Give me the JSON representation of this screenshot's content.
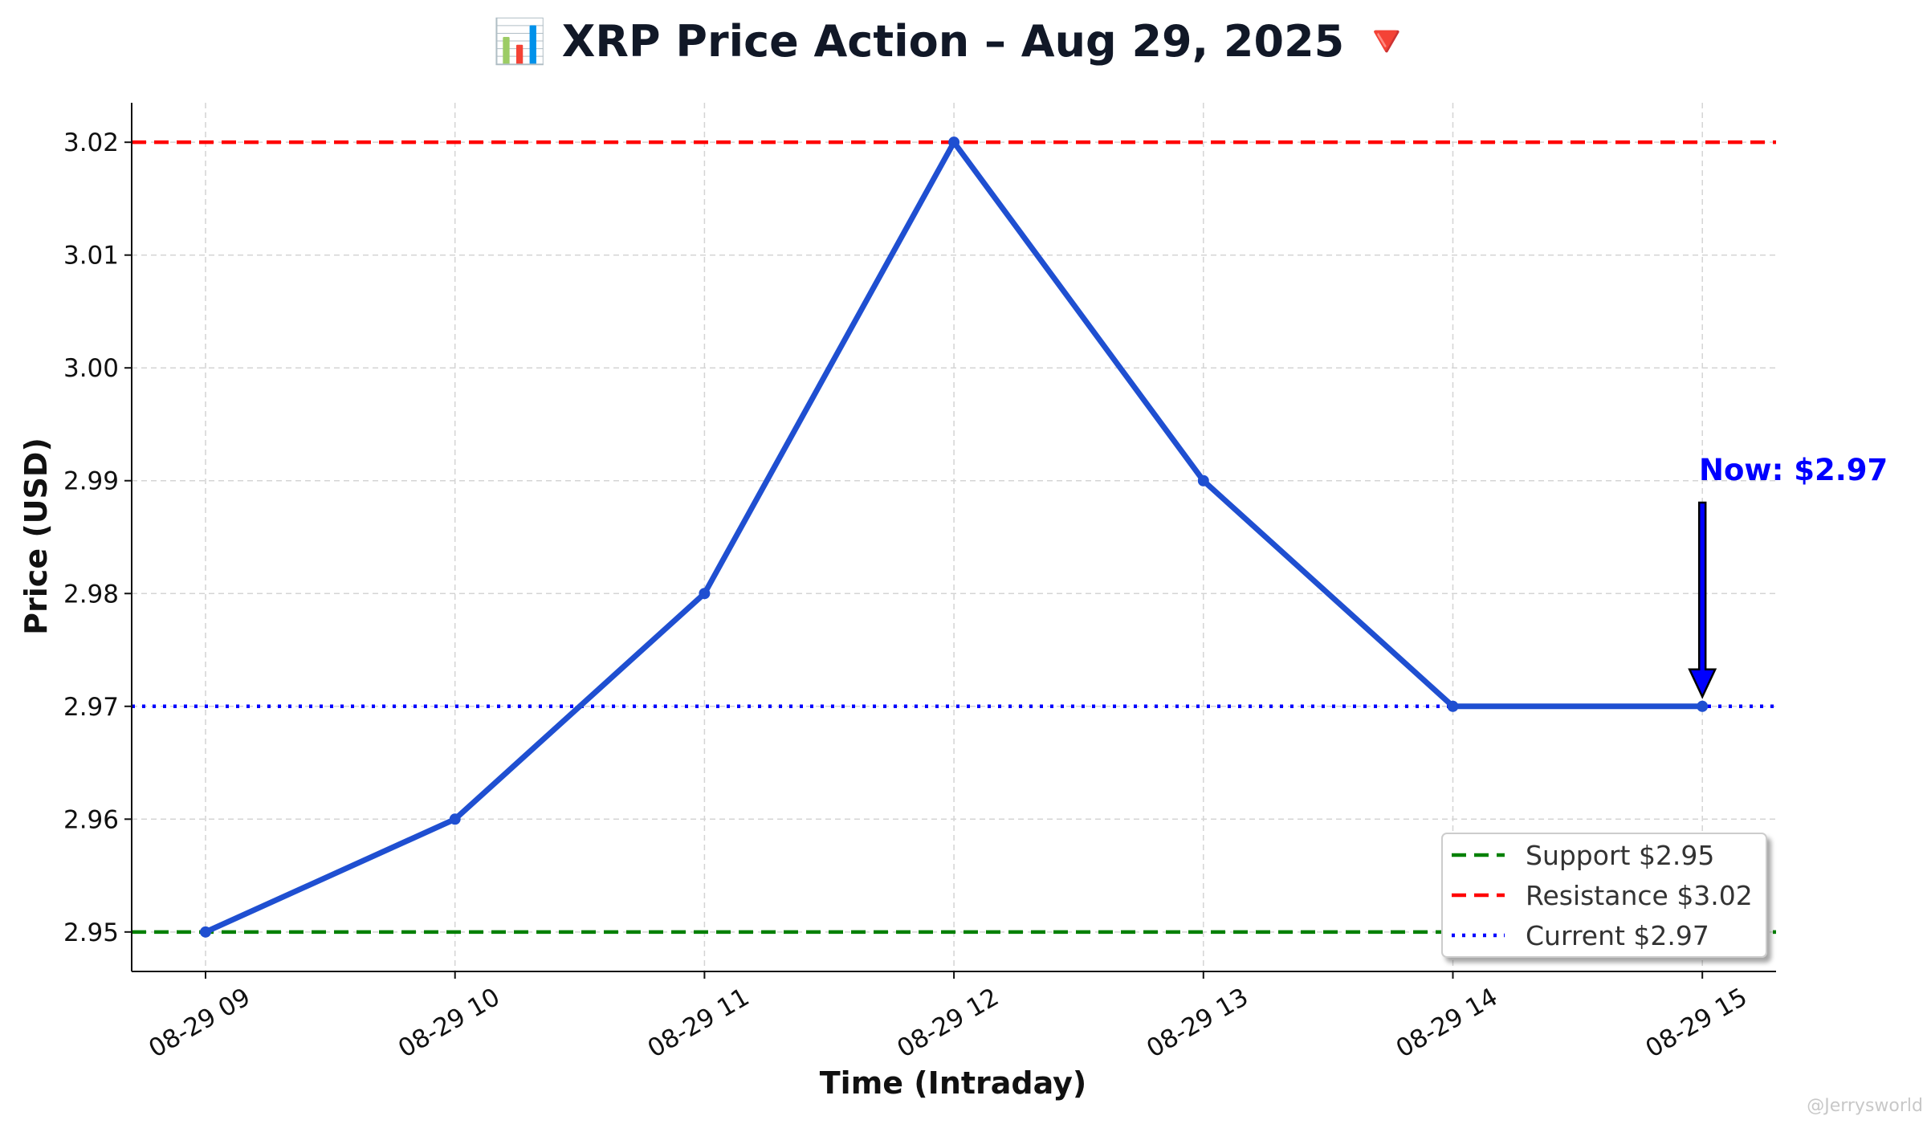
{
  "chart_data": {
    "type": "line",
    "title": "📊 XRP Price Action – Aug 29, 2025 🔻",
    "xlabel": "Time (Intraday)",
    "ylabel": "Price (USD)",
    "categories": [
      "08-29 09",
      "08-29 10",
      "08-29 11",
      "08-29 12",
      "08-29 13",
      "08-29 14",
      "08-29 15"
    ],
    "series": [
      {
        "values": [
          2.95,
          2.96,
          2.98,
          3.02,
          2.99,
          2.97,
          2.97
        ],
        "color": "#1f4fd1"
      }
    ],
    "ylim": [
      2.9465,
      3.0235
    ],
    "yticks": [
      2.95,
      2.96,
      2.97,
      2.98,
      2.99,
      3.0,
      3.01,
      3.02
    ],
    "ytick_labels": [
      "2.95",
      "2.96",
      "2.97",
      "2.98",
      "2.99",
      "3.00",
      "3.01",
      "3.02"
    ],
    "reference_lines": [
      {
        "name": "Support $2.95",
        "value": 2.95,
        "color": "#008000",
        "style": "dashed"
      },
      {
        "name": "Resistance $3.02",
        "value": 3.02,
        "color": "#ff0000",
        "style": "dashed"
      },
      {
        "name": "Current $2.97",
        "value": 2.97,
        "color": "#0000ff",
        "style": "dotted"
      }
    ],
    "annotation": {
      "text": "Now: $2.97",
      "category": "08-29 15",
      "value": 2.97,
      "color": "#0000ff"
    },
    "grid": true,
    "legend_position": "bottom-right"
  },
  "watermark": "@Jerrysworld"
}
